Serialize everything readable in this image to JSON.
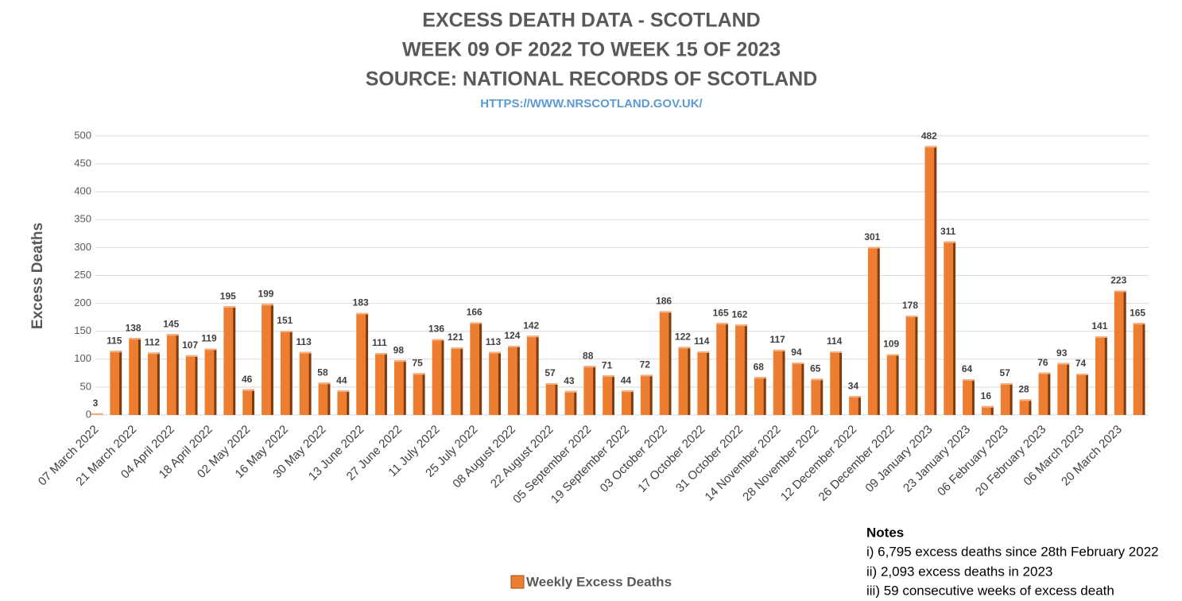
{
  "chart_data": {
    "type": "bar",
    "title": [
      "EXCESS DEATH DATA - SCOTLAND",
      "WEEK 09 OF 2022 TO WEEK 15 OF 2023",
      "SOURCE: NATIONAL RECORDS OF SCOTLAND"
    ],
    "subtitle": "HTTPS://WWW.NRSCOTLAND.GOV.UK/",
    "y_label": "Excess Deaths",
    "categories": [
      "07 March 2022",
      null,
      "21 March 2022",
      null,
      "04 April 2022",
      null,
      "18 April 2022",
      null,
      "02 May 2022",
      null,
      "16 May 2022",
      null,
      "30 May 2022",
      null,
      "13 June 2022",
      null,
      "27 June 2022",
      null,
      "11 July 2022",
      null,
      "25 July 2022",
      null,
      "08 August 2022",
      null,
      "22 August 2022",
      null,
      "05 September 2022",
      null,
      "19 September 2022",
      null,
      "03 October 2022",
      null,
      "17 October 2022",
      null,
      "31 October 2022",
      null,
      "14 November 2022",
      null,
      "28 November 2022",
      null,
      "12 December 2022",
      null,
      "26 December 2022",
      null,
      "09 January 2023",
      null,
      "23 January 2023",
      null,
      "06 February 2023",
      null,
      "20 February 2023",
      null,
      "06 March 2023",
      null,
      "20 March 2023",
      null
    ],
    "series": [
      {
        "name": "Weekly Excess Deaths",
        "color": "#ed7d31",
        "values": [
          3,
          115,
          138,
          112,
          145,
          107,
          119,
          195,
          46,
          199,
          151,
          113,
          58,
          44,
          183,
          111,
          98,
          75,
          136,
          121,
          166,
          113,
          124,
          142,
          57,
          43,
          88,
          71,
          44,
          72,
          186,
          122,
          114,
          165,
          162,
          68,
          117,
          94,
          65,
          114,
          34,
          301,
          109,
          178,
          482,
          311,
          64,
          16,
          57,
          28,
          76,
          93,
          74,
          141,
          223,
          165
        ]
      }
    ],
    "ylim": [
      0,
      500
    ],
    "yticks": [
      0,
      50,
      100,
      150,
      200,
      250,
      300,
      350,
      400,
      450,
      500
    ],
    "grid": true,
    "legend": "bottom"
  },
  "notes": {
    "title": "Notes",
    "lines": [
      "i) 6,795 excess deaths since 28th February 2022",
      "ii) 2,093  excess deaths in 2023",
      "iii) 59 consecutive weeks of excess death"
    ]
  }
}
